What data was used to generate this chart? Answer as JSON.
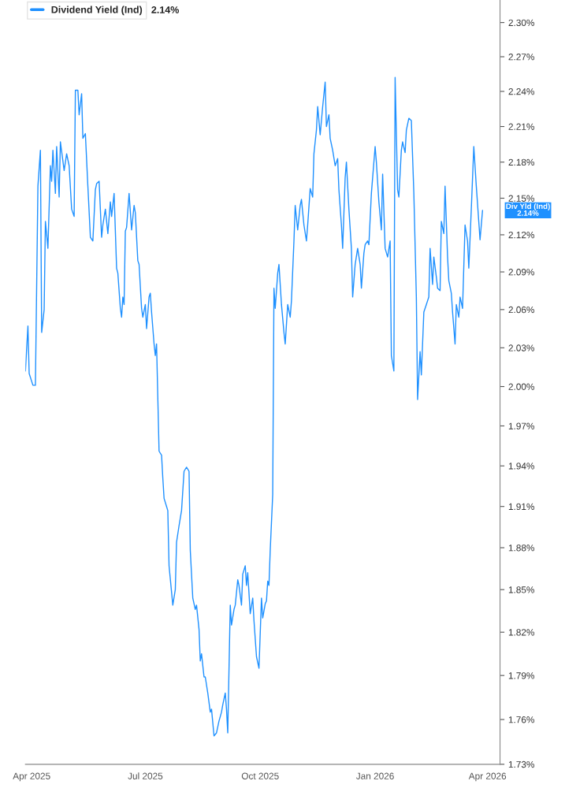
{
  "chart_data": {
    "type": "line",
    "log": "y",
    "grid": false,
    "legend": "top left",
    "marker": "none",
    "line_style": "solid",
    "xlim": [
      "2025-03-27",
      "2026-04-11"
    ],
    "ylim": [
      1.73,
      2.32
    ],
    "xticks": [
      {
        "value": "2025-04-01",
        "label": "Apr 2025"
      },
      {
        "value": "2025-07-01",
        "label": "Jul 2025"
      },
      {
        "value": "2025-10-01",
        "label": "Oct 2025"
      },
      {
        "value": "2026-01-01",
        "label": "Jan 2026"
      },
      {
        "value": "2026-04-01",
        "label": "Apr 2026"
      }
    ],
    "yticks": [
      {
        "value": 1.73,
        "label": "1.73%"
      },
      {
        "value": 1.76,
        "label": "1.76%"
      },
      {
        "value": 1.79,
        "label": "1.79%"
      },
      {
        "value": 1.82,
        "label": "1.82%"
      },
      {
        "value": 1.85,
        "label": "1.85%"
      },
      {
        "value": 1.88,
        "label": "1.88%"
      },
      {
        "value": 1.91,
        "label": "1.91%"
      },
      {
        "value": 1.94,
        "label": "1.94%"
      },
      {
        "value": 1.97,
        "label": "1.97%"
      },
      {
        "value": 2.0,
        "label": "2.00%"
      },
      {
        "value": 2.03,
        "label": "2.03%"
      },
      {
        "value": 2.06,
        "label": "2.06%"
      },
      {
        "value": 2.09,
        "label": "2.09%"
      },
      {
        "value": 2.12,
        "label": "2.12%"
      },
      {
        "value": 2.15,
        "label": "2.15%"
      },
      {
        "value": 2.18,
        "label": "2.18%"
      },
      {
        "value": 2.21,
        "label": "2.21%"
      },
      {
        "value": 2.24,
        "label": "2.24%"
      },
      {
        "value": 2.27,
        "label": "2.27%"
      },
      {
        "value": 2.3,
        "label": "2.30%"
      }
    ],
    "annotations": [
      "Div Yld (Ind)\n2.14%",
      "2.14%"
    ],
    "x": [
      "2025-03-27",
      "2025-03-29",
      "2025-03-30",
      "2025-04-02",
      "2025-04-04",
      "2025-04-06",
      "2025-04-08",
      "2025-04-09",
      "2025-04-11",
      "2025-04-12",
      "2025-04-14",
      "2025-04-16",
      "2025-04-17",
      "2025-04-18",
      "2025-04-20",
      "2025-04-21",
      "2025-04-23",
      "2025-04-24",
      "2025-04-27",
      "2025-04-29",
      "2025-05-01",
      "2025-05-03",
      "2025-05-05",
      "2025-05-06",
      "2025-05-08",
      "2025-05-09",
      "2025-05-11",
      "2025-05-12",
      "2025-05-14",
      "2025-05-16",
      "2025-05-18",
      "2025-05-20",
      "2025-05-22",
      "2025-05-23",
      "2025-05-25",
      "2025-05-27",
      "2025-05-28",
      "2025-05-30",
      "2025-06-01",
      "2025-06-03",
      "2025-06-04",
      "2025-06-06",
      "2025-06-08",
      "2025-06-09",
      "2025-06-11",
      "2025-06-12",
      "2025-06-13",
      "2025-06-14",
      "2025-06-15",
      "2025-06-16",
      "2025-06-18",
      "2025-06-20",
      "2025-06-22",
      "2025-06-23",
      "2025-06-25",
      "2025-06-26",
      "2025-06-28",
      "2025-06-29",
      "2025-07-01",
      "2025-07-02",
      "2025-07-04",
      "2025-07-05",
      "2025-07-06",
      "2025-07-08",
      "2025-07-09",
      "2025-07-10",
      "2025-07-12",
      "2025-07-14",
      "2025-07-15",
      "2025-07-16",
      "2025-07-18",
      "2025-07-19",
      "2025-07-20",
      "2025-07-23",
      "2025-07-25",
      "2025-07-26",
      "2025-07-28",
      "2025-07-30",
      "2025-08-01",
      "2025-08-03",
      "2025-08-05",
      "2025-08-06",
      "2025-08-08",
      "2025-08-10",
      "2025-08-11",
      "2025-08-13",
      "2025-08-14",
      "2025-08-15",
      "2025-08-17",
      "2025-08-18",
      "2025-08-20",
      "2025-08-22",
      "2025-08-23",
      "2025-08-25",
      "2025-08-27",
      "2025-08-29",
      "2025-08-31",
      "2025-09-01",
      "2025-09-03",
      "2025-09-04",
      "2025-09-05",
      "2025-09-07",
      "2025-09-08",
      "2025-09-10",
      "2025-09-11",
      "2025-09-13",
      "2025-09-14",
      "2025-09-16",
      "2025-09-17",
      "2025-09-19",
      "2025-09-20",
      "2025-09-21",
      "2025-09-23",
      "2025-09-25",
      "2025-09-26",
      "2025-09-28",
      "2025-09-30",
      "2025-10-02",
      "2025-10-03",
      "2025-10-05",
      "2025-10-06",
      "2025-10-07",
      "2025-10-08",
      "2025-10-09",
      "2025-10-11",
      "2025-10-12",
      "2025-10-13",
      "2025-10-15",
      "2025-10-16",
      "2025-10-18",
      "2025-10-20",
      "2025-10-21",
      "2025-10-23",
      "2025-10-25",
      "2025-10-26",
      "2025-10-28",
      "2025-10-29",
      "2025-10-31",
      "2025-11-02",
      "2025-11-03",
      "2025-11-05",
      "2025-11-07",
      "2025-11-08",
      "2025-11-10",
      "2025-11-12",
      "2025-11-13",
      "2025-11-15",
      "2025-11-16",
      "2025-11-18",
      "2025-11-20",
      "2025-11-22",
      "2025-11-23",
      "2025-11-25",
      "2025-11-26",
      "2025-11-28",
      "2025-11-30",
      "2025-12-02",
      "2025-12-03",
      "2025-12-05",
      "2025-12-06",
      "2025-12-08",
      "2025-12-09",
      "2025-12-11",
      "2025-12-13",
      "2025-12-14",
      "2025-12-16",
      "2025-12-18",
      "2025-12-20",
      "2025-12-21",
      "2025-12-23",
      "2025-12-24",
      "2025-12-26",
      "2025-12-27",
      "2025-12-29",
      "2026-01-01",
      "2026-01-02",
      "2026-01-04",
      "2026-01-06",
      "2026-01-07",
      "2026-01-09",
      "2026-01-11",
      "2026-01-13",
      "2026-01-14",
      "2026-01-16",
      "2026-01-17",
      "2026-01-19",
      "2026-01-20",
      "2026-01-22",
      "2026-01-23",
      "2026-01-25",
      "2026-01-26",
      "2026-01-28",
      "2026-01-30",
      "2026-02-01",
      "2026-02-03",
      "2026-02-04",
      "2026-02-06",
      "2026-02-07",
      "2026-02-09",
      "2026-02-11",
      "2026-02-13",
      "2026-02-14",
      "2026-02-16",
      "2026-02-17",
      "2026-02-19",
      "2026-02-20",
      "2026-02-22",
      "2026-02-23",
      "2026-02-25",
      "2026-02-26",
      "2026-02-28",
      "2026-03-01",
      "2026-03-03",
      "2026-03-04",
      "2026-03-06",
      "2026-03-07",
      "2026-03-09",
      "2026-03-10",
      "2026-03-12",
      "2026-03-14",
      "2026-03-16",
      "2026-03-17",
      "2026-03-19",
      "2026-03-21",
      "2026-03-23",
      "2026-03-26",
      "2026-03-28"
    ],
    "series": [
      {
        "name": "Dividend Yield (Ind)",
        "color": "#1e90ff",
        "values": [
          2.012,
          2.047,
          2.01,
          2.001,
          2.001,
          2.16,
          2.19,
          2.042,
          2.06,
          2.131,
          2.109,
          2.177,
          2.164,
          2.19,
          2.154,
          2.193,
          2.151,
          2.197,
          2.173,
          2.187,
          2.177,
          2.141,
          2.135,
          2.241,
          2.241,
          2.22,
          2.238,
          2.2,
          2.204,
          2.16,
          2.118,
          2.115,
          2.157,
          2.162,
          2.164,
          2.118,
          2.128,
          2.141,
          2.121,
          2.147,
          2.135,
          2.154,
          2.093,
          2.089,
          2.061,
          2.054,
          2.07,
          2.064,
          2.123,
          2.126,
          2.154,
          2.124,
          2.144,
          2.138,
          2.099,
          2.096,
          2.061,
          2.054,
          2.064,
          2.045,
          2.07,
          2.073,
          2.058,
          2.033,
          2.024,
          2.033,
          1.951,
          1.948,
          1.931,
          1.916,
          1.91,
          1.907,
          1.867,
          1.839,
          1.85,
          1.884,
          1.896,
          1.907,
          1.936,
          1.939,
          1.936,
          1.878,
          1.844,
          1.836,
          1.839,
          1.822,
          1.8,
          1.805,
          1.789,
          1.789,
          1.778,
          1.765,
          1.767,
          1.749,
          1.751,
          1.759,
          1.765,
          1.77,
          1.778,
          1.767,
          1.751,
          1.839,
          1.825,
          1.836,
          1.839,
          1.857,
          1.853,
          1.839,
          1.861,
          1.867,
          1.853,
          1.862,
          1.833,
          1.844,
          1.828,
          1.803,
          1.795,
          1.844,
          1.83,
          1.84,
          1.842,
          1.856,
          1.853,
          1.878,
          1.919,
          2.077,
          2.061,
          2.089,
          2.096,
          2.064,
          2.042,
          2.033,
          2.064,
          2.054,
          2.067,
          2.115,
          2.144,
          2.124,
          2.144,
          2.149,
          2.128,
          2.115,
          2.128,
          2.158,
          2.151,
          2.187,
          2.207,
          2.227,
          2.203,
          2.227,
          2.248,
          2.21,
          2.22,
          2.2,
          2.19,
          2.177,
          2.183,
          2.157,
          2.128,
          2.109,
          2.167,
          2.18,
          2.141,
          2.109,
          2.07,
          2.096,
          2.109,
          2.096,
          2.077,
          2.105,
          2.112,
          2.115,
          2.112,
          2.154,
          2.193,
          2.18,
          2.147,
          2.124,
          2.17,
          2.109,
          2.102,
          2.115,
          2.024,
          2.012,
          2.252,
          2.157,
          2.151,
          2.19,
          2.197,
          2.188,
          2.207,
          2.217,
          2.215,
          2.154,
          2.07,
          1.99,
          2.027,
          2.009,
          2.058,
          2.064,
          2.07,
          2.109,
          2.08,
          2.102,
          2.086,
          2.077,
          2.075,
          2.131,
          2.121,
          2.16,
          2.102,
          2.083,
          2.073,
          2.058,
          2.033,
          2.064,
          2.054,
          2.07,
          2.061,
          2.128,
          2.115,
          2.093,
          2.141,
          2.193,
          2.16,
          2.116,
          2.14
        ]
      }
    ]
  }
}
